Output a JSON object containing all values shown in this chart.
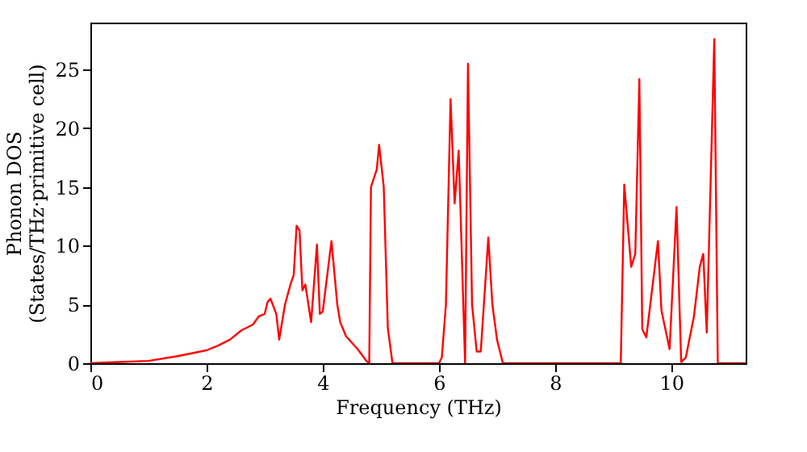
{
  "chart_data": {
    "type": "line",
    "xlabel": "Frequency (THz)",
    "ylabel": "Phonon DOS\n(States/THz·primitive cell)",
    "xlim": [
      0,
      11.28
    ],
    "ylim": [
      0,
      29
    ],
    "xticks": [
      0,
      2,
      4,
      6,
      8,
      10
    ],
    "yticks": [
      0,
      5,
      10,
      15,
      20,
      25
    ],
    "grid": false,
    "marker": "none",
    "line_style": "solid",
    "series": [
      {
        "color": "#ff0000",
        "x": [
          0,
          0.5,
          1,
          1.5,
          2,
          2.2,
          2.4,
          2.6,
          2.8,
          2.9,
          3.0,
          3.05,
          3.1,
          3.2,
          3.25,
          3.35,
          3.45,
          3.5,
          3.55,
          3.6,
          3.65,
          3.7,
          3.8,
          3.9,
          3.95,
          4.0,
          4.15,
          4.25,
          4.3,
          4.4,
          4.6,
          4.75,
          4.8,
          4.83,
          4.93,
          4.97,
          5.05,
          5.12,
          5.2,
          6.0,
          6.05,
          6.12,
          6.2,
          6.27,
          6.34,
          6.45,
          6.5,
          6.57,
          6.65,
          6.72,
          6.85,
          6.92,
          7.0,
          7.1,
          9.1,
          9.13,
          9.19,
          9.31,
          9.38,
          9.45,
          9.5,
          9.57,
          9.77,
          9.83,
          9.97,
          10.09,
          10.17,
          10.25,
          10.39,
          10.49,
          10.55,
          10.61,
          10.74,
          10.8,
          11.28
        ],
        "values": [
          0,
          0.1,
          0.2,
          0.6,
          1.1,
          1.5,
          2.0,
          2.8,
          3.3,
          4.0,
          4.2,
          5.2,
          5.5,
          4.2,
          2.0,
          5.0,
          6.8,
          7.5,
          11.7,
          11.3,
          6.2,
          6.7,
          3.5,
          10.1,
          4.2,
          4.4,
          10.4,
          5.0,
          3.5,
          2.3,
          1.2,
          0.2,
          0,
          15,
          16.5,
          18.6,
          15,
          3,
          0,
          0,
          0.5,
          5.0,
          22.5,
          13.6,
          18.1,
          0,
          25.5,
          5.0,
          1.0,
          1.0,
          10.7,
          5,
          2.0,
          0,
          0,
          0,
          15.2,
          8.2,
          9.3,
          24.2,
          2.9,
          2.2,
          10.4,
          4.5,
          1.2,
          13.3,
          0.1,
          0.5,
          4.0,
          8.2,
          9.3,
          2.6,
          27.6,
          0,
          0
        ]
      }
    ]
  }
}
